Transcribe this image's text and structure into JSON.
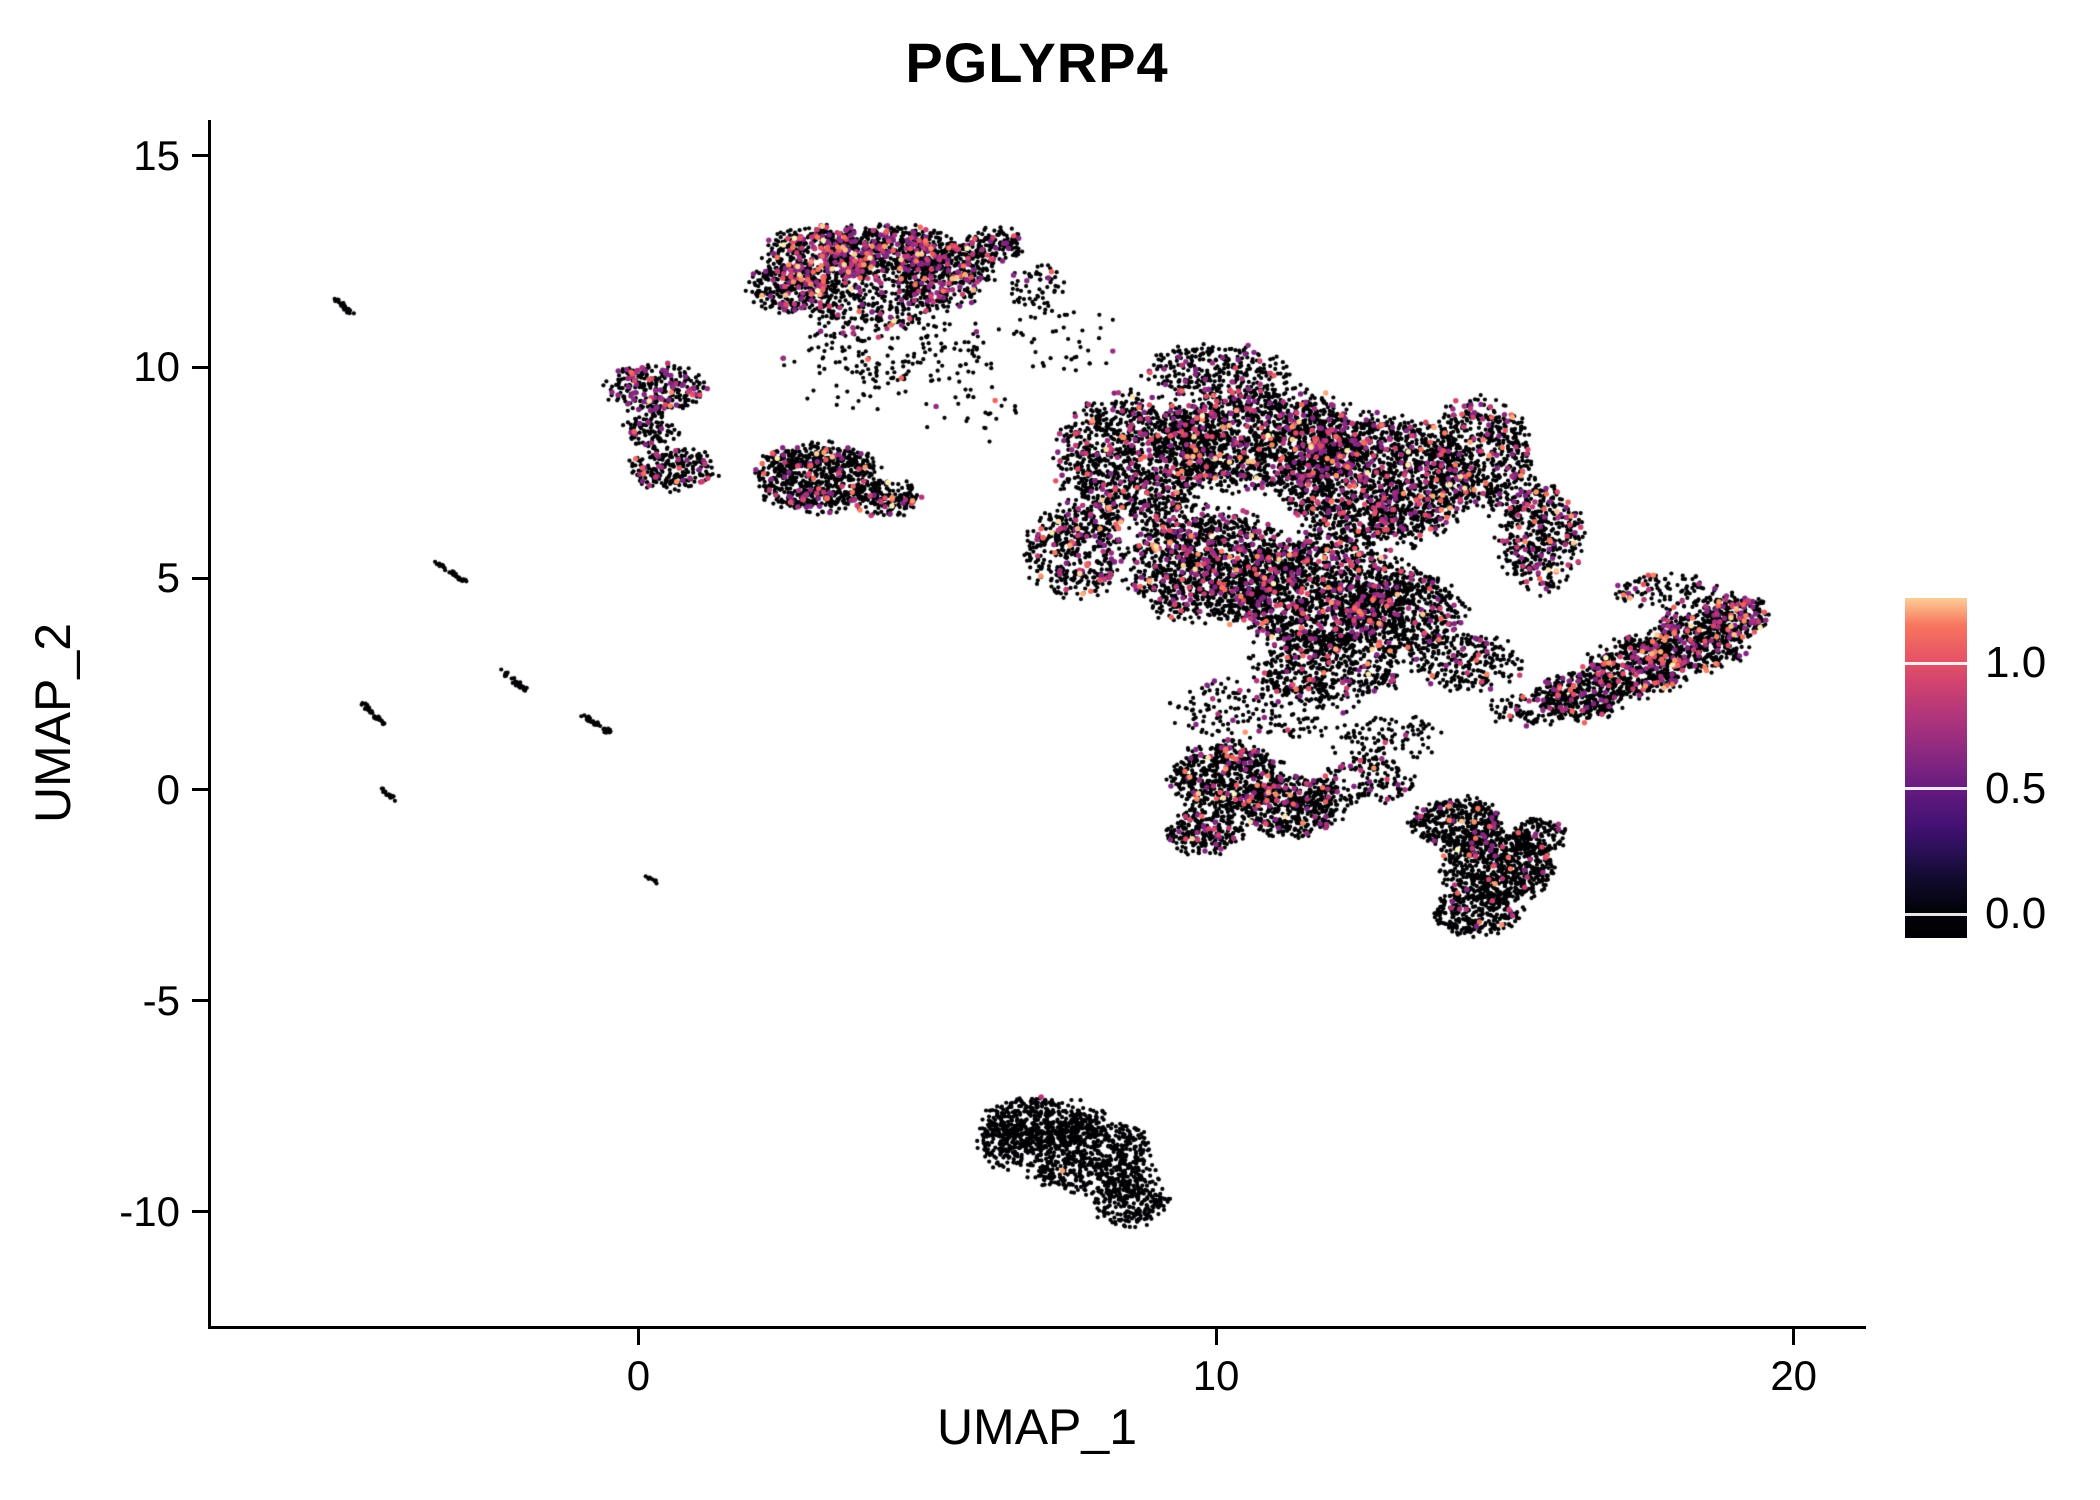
{
  "chart_data": {
    "type": "scatter",
    "title": "PGLYRP4",
    "xlabel": "UMAP_1",
    "ylabel": "UMAP_2",
    "xlim": [
      -7.4,
      21.2
    ],
    "ylim": [
      -12.7,
      15.85
    ],
    "x_ticks": [
      0,
      10,
      20
    ],
    "y_ticks": [
      -10,
      -5,
      0,
      5,
      10,
      15
    ],
    "grid": false,
    "legend_position": "right",
    "point_color_zero": "#000004",
    "colormap_stops": [
      [
        0,
        "#000004"
      ],
      [
        0.125,
        "#140e36"
      ],
      [
        0.25,
        "#3b0f70"
      ],
      [
        0.375,
        "#641a80"
      ],
      [
        0.5,
        "#8c2981"
      ],
      [
        0.625,
        "#b73779"
      ],
      [
        0.75,
        "#de4968"
      ],
      [
        0.875,
        "#f7705c"
      ],
      [
        0.94,
        "#fe9f6d"
      ],
      [
        1,
        "#fcfdbf"
      ]
    ],
    "colorbar": {
      "ticks": [
        0.0,
        0.5,
        1.0
      ],
      "labels": [
        "0.0",
        "0.5",
        "1.0"
      ],
      "vmax": 1.3,
      "bar_min": -0.095,
      "bar_max": 1.26
    },
    "clusters_fields": [
      "cx",
      "cy",
      "rx",
      "ry",
      "n",
      "expr_frac"
    ],
    "clusters": [
      [
        3.2,
        12.6,
        0.95,
        0.75,
        500,
        0.2
      ],
      [
        4.4,
        12.7,
        1.15,
        0.65,
        600,
        0.2
      ],
      [
        5.3,
        12.2,
        0.85,
        0.75,
        350,
        0.16
      ],
      [
        2.6,
        11.9,
        0.7,
        0.6,
        260,
        0.18
      ],
      [
        4.0,
        11.5,
        1.3,
        0.6,
        300,
        0.12
      ],
      [
        4.7,
        10.4,
        1.5,
        0.9,
        140,
        0.08
      ],
      [
        6.2,
        12.9,
        0.5,
        0.4,
        130,
        0.15
      ],
      [
        6.9,
        11.9,
        0.5,
        0.5,
        60,
        0.1
      ],
      [
        0.3,
        9.5,
        0.85,
        0.55,
        300,
        0.2
      ],
      [
        0.2,
        8.5,
        0.45,
        0.4,
        100,
        0.12
      ],
      [
        0.6,
        7.6,
        0.75,
        0.5,
        230,
        0.12
      ],
      [
        3.1,
        7.4,
        1.05,
        0.8,
        750,
        0.1
      ],
      [
        4.3,
        6.9,
        0.6,
        0.45,
        170,
        0.08
      ],
      [
        3.6,
        9.9,
        1.2,
        1.0,
        55,
        0.06
      ],
      [
        8.6,
        7.8,
        1.3,
        1.5,
        1200,
        0.13
      ],
      [
        7.6,
        5.6,
        0.85,
        1.1,
        450,
        0.12
      ],
      [
        10.8,
        8.3,
        1.7,
        1.2,
        1500,
        0.14
      ],
      [
        10.0,
        9.9,
        1.25,
        0.6,
        300,
        0.12
      ],
      [
        12.8,
        7.3,
        1.6,
        1.5,
        1800,
        0.12
      ],
      [
        14.6,
        7.9,
        0.9,
        1.3,
        600,
        0.12
      ],
      [
        15.6,
        6.0,
        0.7,
        1.3,
        450,
        0.14
      ],
      [
        9.9,
        5.3,
        1.4,
        1.3,
        1300,
        0.13
      ],
      [
        11.8,
        4.6,
        1.5,
        1.4,
        1400,
        0.11
      ],
      [
        13.3,
        4.2,
        1.0,
        1.0,
        600,
        0.1
      ],
      [
        12.0,
        2.9,
        1.3,
        0.8,
        500,
        0.1
      ],
      [
        10.8,
        1.9,
        1.5,
        0.8,
        200,
        0.06
      ],
      [
        14.3,
        3.0,
        0.9,
        0.7,
        250,
        0.08
      ],
      [
        16.3,
        2.2,
        0.75,
        0.55,
        350,
        0.12
      ],
      [
        17.3,
        2.9,
        0.85,
        0.7,
        500,
        0.14
      ],
      [
        18.3,
        3.5,
        0.85,
        0.7,
        500,
        0.16
      ],
      [
        19.0,
        4.1,
        0.55,
        0.5,
        250,
        0.18
      ],
      [
        17.8,
        4.7,
        0.95,
        0.4,
        120,
        0.1
      ],
      [
        15.4,
        1.9,
        0.7,
        0.4,
        90,
        0.08
      ],
      [
        10.2,
        0.3,
        0.95,
        0.8,
        600,
        0.1
      ],
      [
        11.3,
        -0.4,
        0.9,
        0.7,
        500,
        0.08
      ],
      [
        9.8,
        -1.0,
        0.65,
        0.55,
        250,
        0.1
      ],
      [
        12.6,
        0.2,
        0.85,
        0.55,
        150,
        0.06
      ],
      [
        14.2,
        -0.8,
        0.8,
        0.6,
        400,
        0.05
      ],
      [
        14.9,
        -1.8,
        0.95,
        0.85,
        700,
        0.05
      ],
      [
        14.5,
        -2.9,
        0.75,
        0.55,
        300,
        0.04
      ],
      [
        15.6,
        -1.1,
        0.45,
        0.45,
        120,
        0.06
      ],
      [
        12.9,
        1.2,
        1.1,
        0.6,
        110,
        0.05
      ],
      [
        7.0,
        -7.9,
        1.05,
        0.6,
        500,
        0.006
      ],
      [
        7.8,
        -8.7,
        1.15,
        0.85,
        650,
        0.003
      ],
      [
        8.5,
        -9.7,
        0.65,
        0.6,
        260,
        0.0
      ],
      [
        6.35,
        -8.4,
        0.45,
        0.55,
        160,
        0.0
      ],
      [
        7.3,
        10.7,
        1.0,
        0.8,
        45,
        0.08
      ],
      [
        5.8,
        9.0,
        0.9,
        0.9,
        30,
        0.05
      ]
    ],
    "streaks_fields": [
      "x1",
      "y1",
      "x2",
      "y2",
      "n"
    ],
    "streaks": [
      [
        -5.25,
        11.65,
        -4.95,
        11.25,
        25
      ],
      [
        -3.55,
        5.4,
        -3.0,
        4.95,
        35
      ],
      [
        -2.35,
        2.8,
        -1.9,
        2.3,
        30
      ],
      [
        -4.8,
        2.05,
        -4.4,
        1.55,
        30
      ],
      [
        -0.95,
        1.75,
        -0.5,
        1.35,
        35
      ],
      [
        -4.45,
        0.0,
        -4.2,
        -0.25,
        18
      ],
      [
        0.1,
        -2.0,
        0.3,
        -2.2,
        10
      ]
    ]
  }
}
